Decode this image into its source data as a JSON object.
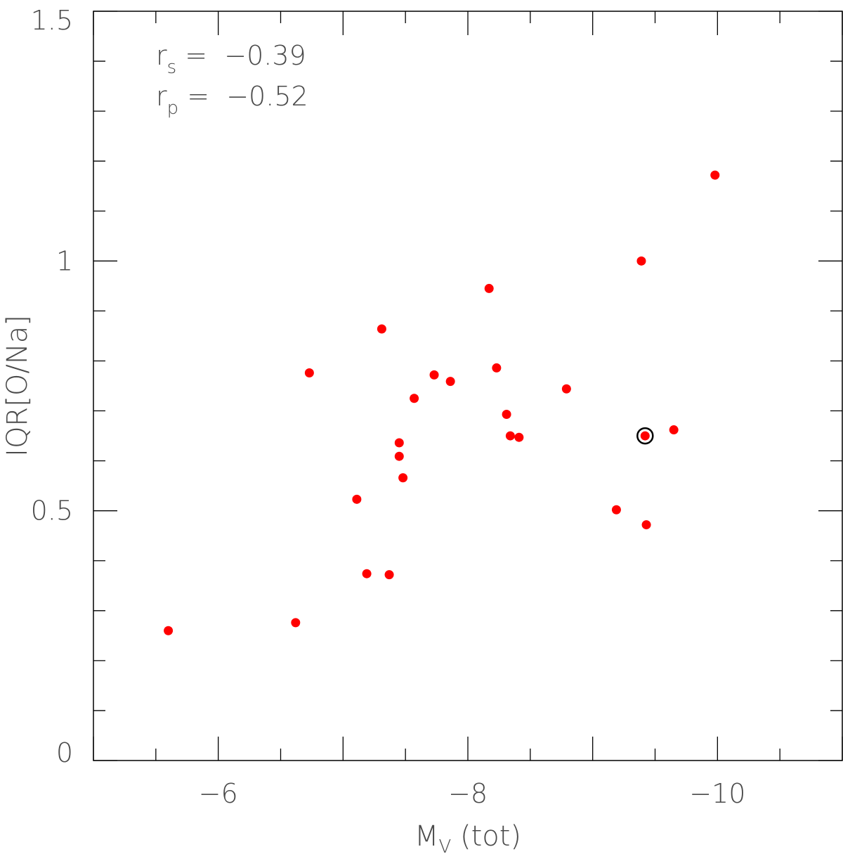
{
  "chart_data": {
    "type": "scatter",
    "title": "",
    "xlabel": "M_V (tot)",
    "xlabel_main": "M",
    "xlabel_sub": "V",
    "xlabel_rest": " (tot)",
    "ylabel": "IQR[O/Na]",
    "xlim": [
      -5,
      -11
    ],
    "ylim": [
      0,
      1.5
    ],
    "xticks": [
      -6,
      -8,
      -10
    ],
    "xtick_labels": [
      "−6",
      "−8",
      "−10"
    ],
    "yticks": [
      0,
      0.5,
      1,
      1.5
    ],
    "ytick_labels": [
      "0",
      "0.5",
      "1",
      "1.5"
    ],
    "grid": false,
    "marker_color": "#ff0000",
    "highlight_color": "#000000",
    "annotations": [
      {
        "symbol": "r",
        "sub": "s",
        "text": " =  −0.39"
      },
      {
        "symbol": "r",
        "sub": "p",
        "text": " =  −0.52"
      }
    ],
    "series": [
      {
        "x": [
          -5.6,
          -6.62,
          -6.73,
          -7.11,
          -7.19,
          -7.31,
          -7.37,
          -7.45,
          -7.45,
          -7.48,
          -7.57,
          -7.73,
          -7.86,
          -8.17,
          -8.23,
          -8.31,
          -8.34,
          -8.41,
          -8.79,
          -9.19,
          -9.39,
          -9.42,
          -9.43,
          -9.65,
          -9.98
        ],
        "y": [
          0.26,
          0.276,
          0.776,
          0.523,
          0.374,
          0.864,
          0.372,
          0.636,
          0.609,
          0.566,
          0.725,
          0.772,
          0.759,
          0.945,
          0.786,
          0.693,
          0.65,
          0.647,
          0.744,
          0.502,
          1.0,
          0.65,
          0.472,
          0.662,
          1.172
        ]
      }
    ],
    "highlight": {
      "x": -9.42,
      "y": 0.65
    }
  }
}
